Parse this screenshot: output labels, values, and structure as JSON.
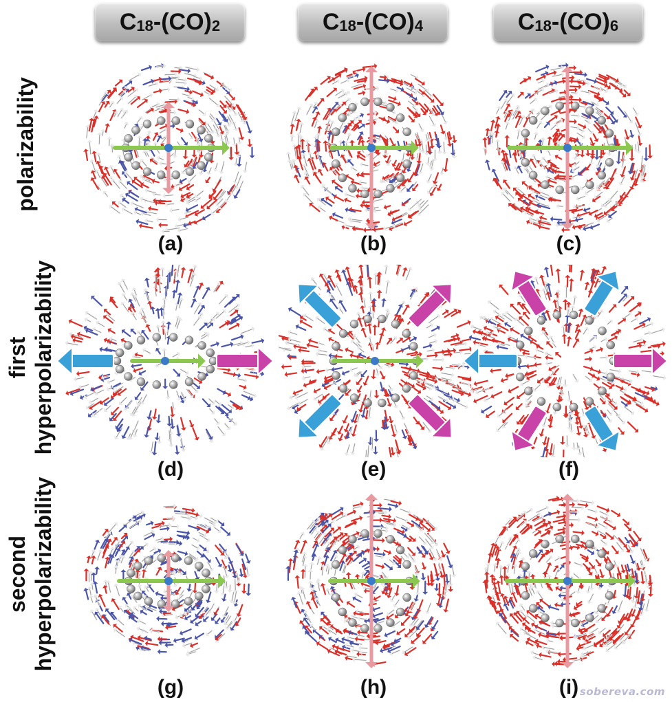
{
  "columns": [
    {
      "base": "C",
      "sub1": "18",
      "mid": "-(CO)",
      "sub2": "2"
    },
    {
      "base": "C",
      "sub1": "18",
      "mid": "-(CO)",
      "sub2": "4"
    },
    {
      "base": "C",
      "sub1": "18",
      "mid": "-(CO)",
      "sub2": "6"
    }
  ],
  "rows": [
    {
      "line1": "polarizability",
      "line2": ""
    },
    {
      "line1": "first",
      "line2": "hyperpolarizability"
    },
    {
      "line1": "second",
      "line2": "hyperpolarizability"
    }
  ],
  "panels": [
    "(a)",
    "(b)",
    "(c)",
    "(d)",
    "(e)",
    "(f)",
    "(g)",
    "(h)",
    "(i)"
  ],
  "watermark": "sobereva.com",
  "colors": {
    "red_arrow": "#d9302a",
    "white_arrow": "#e8e8e8",
    "blue_arrow": "#4a55a8",
    "big_blue": "#3aa0d8",
    "big_magenta": "#c842a8",
    "green_axis": "#8cc850",
    "pink_axis": "#e89aa0"
  }
}
